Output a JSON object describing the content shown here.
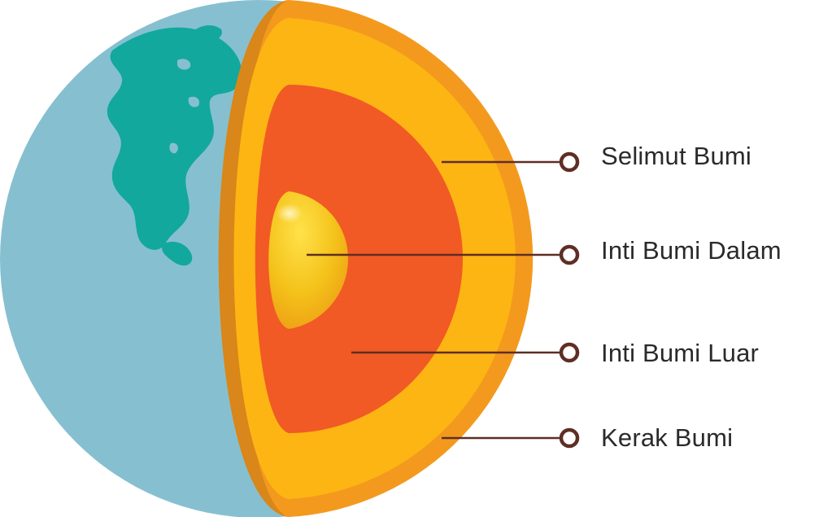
{
  "labels": {
    "mantle": "Selimut Bumi",
    "inner_core": "Inti Bumi Dalam",
    "outer_core": "Inti Bumi Luar",
    "crust": "Kerak Bumi"
  },
  "colors": {
    "ocean": "#86c0d0",
    "land": "#12a89d",
    "crust_outer": "#f39a1e",
    "crust_edge": "#d9861a",
    "mantle": "#fdb514",
    "outer_core": "#f15a24",
    "inner_core": "#f4c21a",
    "leader_line": "#5e2e24",
    "label_text": "#2a2a2a"
  }
}
